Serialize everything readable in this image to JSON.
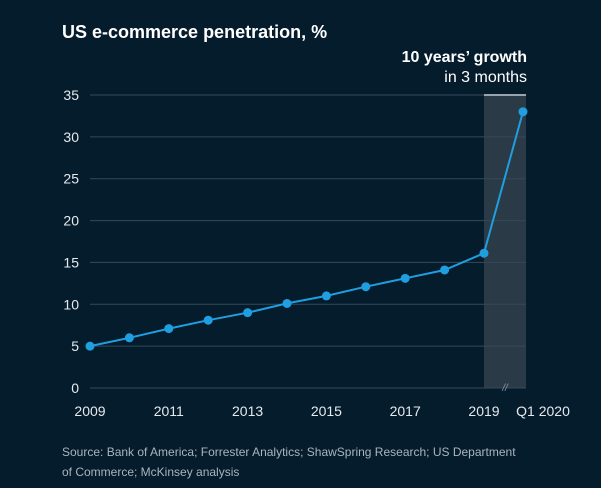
{
  "chart_data": {
    "type": "line",
    "title": "US e-commerce penetration, %",
    "ylim": [
      0,
      35
    ],
    "y_ticks": [
      "0",
      "5",
      "10",
      "15",
      "20",
      "25",
      "30",
      "35"
    ],
    "x_ticks": [
      "2009",
      "2011",
      "2013",
      "2015",
      "2017",
      "2019",
      "Q1 2020"
    ],
    "x": [
      "2009",
      "2010",
      "2011",
      "2012",
      "2013",
      "2014",
      "2015",
      "2016",
      "2017",
      "2018",
      "2019",
      "Q1 2020"
    ],
    "series": [
      {
        "values": [
          5.0,
          6.0,
          7.1,
          8.1,
          9.0,
          10.1,
          11.0,
          12.1,
          13.1,
          14.1,
          16.1,
          33.0
        ]
      }
    ],
    "grid": true,
    "annotation": {
      "line1": "10 years’ growth",
      "line2": "in 3 months"
    },
    "axis_break_mark": "//",
    "source_lines": [
      "Source: Bank of America; Forrester Analytics; ShawSpring Research; US Department",
      "of Commerce; McKinsey analysis"
    ],
    "colors": {
      "background": "#051c2c",
      "line": "#1f9ee0",
      "highlight_band": "#2a3a47",
      "grid": "#35495a"
    }
  }
}
